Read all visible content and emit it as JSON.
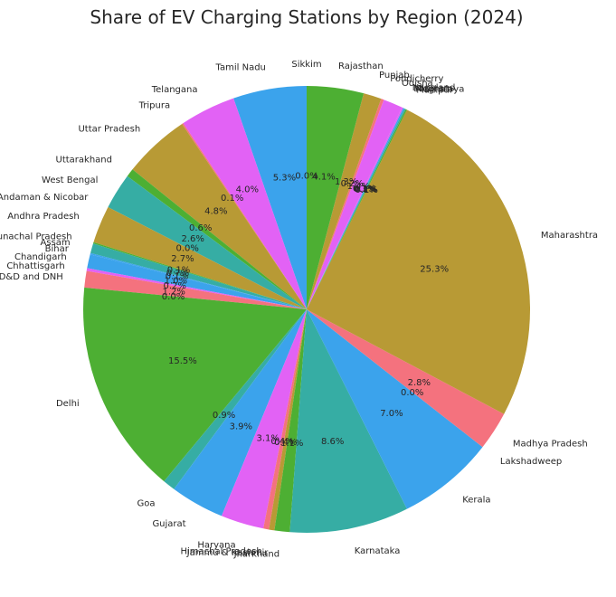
{
  "chart_data": {
    "type": "pie",
    "title": "Share of EV Charging Stations by Region (2024)",
    "start_angle_deg": 90,
    "direction": "counterclockwise",
    "slices": [
      {
        "label": "Tamil Nadu",
        "value": 5.3,
        "pct_label": "5.3%",
        "color": "#3ba3ec"
      },
      {
        "label": "Telangana",
        "value": 4.0,
        "pct_label": "4.0%",
        "color": "#e262f5"
      },
      {
        "label": "Tripura",
        "value": 0.1,
        "pct_label": "0.1%",
        "color": "#f4727e"
      },
      {
        "label": "Uttar Pradesh",
        "value": 4.8,
        "pct_label": "4.8%",
        "color": "#b89a35"
      },
      {
        "label": "Uttarakhand",
        "value": 0.6,
        "pct_label": "0.6%",
        "color": "#4daf33"
      },
      {
        "label": "West Bengal",
        "value": 2.6,
        "pct_label": "2.6%",
        "color": "#36ada4"
      },
      {
        "label": "Andaman & Nicobar",
        "value": 0.0,
        "pct_label": "0.0%",
        "color": "#f4727e"
      },
      {
        "label": "Andhra Pradesh",
        "value": 2.7,
        "pct_label": "2.7%",
        "color": "#b89a35"
      },
      {
        "label": "Arunachal Pradesh",
        "value": 0.1,
        "pct_label": "0.1%",
        "color": "#4daf33"
      },
      {
        "label": "Assam",
        "value": 0.7,
        "pct_label": "0.7%",
        "color": "#36ada4"
      },
      {
        "label": "Bihar",
        "value": 0.1,
        "pct_label": "0.1%",
        "color": "#3ba3ec"
      },
      {
        "label": "Chandigarh",
        "value": 1.0,
        "pct_label": "1.0%",
        "color": "#3ba3ec"
      },
      {
        "label": "Chhattisgarh",
        "value": 0.2,
        "pct_label": "0.2%",
        "color": "#e262f5"
      },
      {
        "label": "D&D and DNH",
        "value": 1.2,
        "pct_label": "1.2%",
        "color": "#f4727e"
      },
      {
        "label": "",
        "value": 0.0,
        "pct_label": "0.0%",
        "color": "#f4727e"
      },
      {
        "label": "Delhi",
        "value": 15.5,
        "pct_label": "15.5%",
        "color": "#4daf33"
      },
      {
        "label": "Goa",
        "value": 0.9,
        "pct_label": "0.9%",
        "color": "#36ada4"
      },
      {
        "label": "Gujarat",
        "value": 3.9,
        "pct_label": "3.9%",
        "color": "#3ba3ec"
      },
      {
        "label": "Haryana",
        "value": 3.1,
        "pct_label": "3.1%",
        "color": "#e262f5"
      },
      {
        "label": "Himachal Pradesh",
        "value": 0.4,
        "pct_label": "0.4%",
        "color": "#f4727e"
      },
      {
        "label": "Jammu & Kashmir",
        "value": 0.4,
        "pct_label": "0.4%",
        "color": "#b89a35"
      },
      {
        "label": "Jharkhand",
        "value": 1.1,
        "pct_label": "1.1%",
        "color": "#4daf33"
      },
      {
        "label": "Karnataka",
        "value": 8.6,
        "pct_label": "8.6%",
        "color": "#36ada4"
      },
      {
        "label": "Kerala",
        "value": 7.0,
        "pct_label": "7.0%",
        "color": "#3ba3ec"
      },
      {
        "label": "Lakshadweep",
        "value": 0.0,
        "pct_label": "0.0%",
        "color": "#e262f5"
      },
      {
        "label": "Madhya Pradesh",
        "value": 2.8,
        "pct_label": "2.8%",
        "color": "#f4727e"
      },
      {
        "label": "Maharashtra",
        "value": 25.3,
        "pct_label": "25.3%",
        "color": "#b89a35"
      },
      {
        "label": "Manipur",
        "value": 0.1,
        "pct_label": "0.1%",
        "color": "#4daf33"
      },
      {
        "label": "Meghalaya",
        "value": 0.1,
        "pct_label": "0.1%",
        "color": "#36ada4"
      },
      {
        "label": "Mizoram",
        "value": 0.1,
        "pct_label": "0.1%",
        "color": "#3ba3ec"
      },
      {
        "label": "Nagaland",
        "value": 0.1,
        "pct_label": "0.1%",
        "color": "#e262f5"
      },
      {
        "label": "Odisha",
        "value": 1.4,
        "pct_label": "1.4%",
        "color": "#e262f5"
      },
      {
        "label": "Pondicherry",
        "value": 0.2,
        "pct_label": "0.2%",
        "color": "#f4727e"
      },
      {
        "label": "Punjab",
        "value": 1.3,
        "pct_label": "1.3%",
        "color": "#b89a35"
      },
      {
        "label": "Rajasthan",
        "value": 4.1,
        "pct_label": "4.1%",
        "color": "#4daf33"
      },
      {
        "label": "Sikkim",
        "value": 0.0,
        "pct_label": "0.0%",
        "color": "#36ada4"
      }
    ]
  }
}
